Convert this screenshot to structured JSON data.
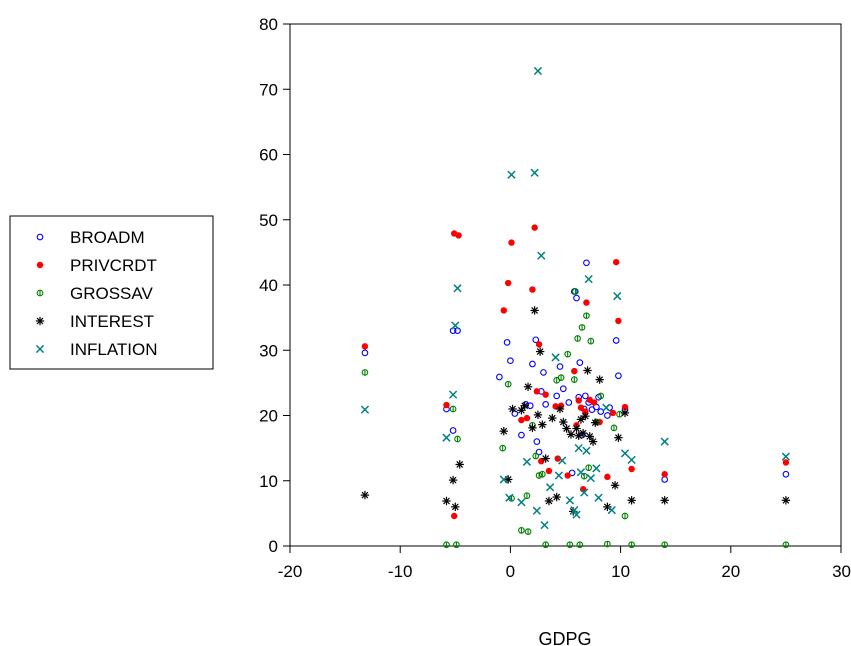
{
  "chart_data": {
    "type": "scatter",
    "xlabel": "GDPG",
    "ylabel": "",
    "xlim": [
      -20,
      30
    ],
    "ylim": [
      0,
      80
    ],
    "xticks": [
      -20,
      -10,
      0,
      10,
      20,
      30
    ],
    "yticks": [
      0,
      10,
      20,
      30,
      40,
      50,
      60,
      70,
      80
    ],
    "grid": false,
    "legend_position": "left",
    "series": [
      {
        "name": "BROADM",
        "marker": "circle-open",
        "color": "#0000ff",
        "points": [
          [
            -13.2,
            29.6
          ],
          [
            -5.8,
            21.0
          ],
          [
            -5.2,
            33.0
          ],
          [
            -4.8,
            33.0
          ],
          [
            -5.2,
            17.7
          ],
          [
            -1.0,
            25.9
          ],
          [
            -0.3,
            31.2
          ],
          [
            0.0,
            28.4
          ],
          [
            0.4,
            20.3
          ],
          [
            1.0,
            17.0
          ],
          [
            1.4,
            21.7
          ],
          [
            1.8,
            21.5
          ],
          [
            2.0,
            27.9
          ],
          [
            2.3,
            31.6
          ],
          [
            2.4,
            16.0
          ],
          [
            2.6,
            14.4
          ],
          [
            2.8,
            23.7
          ],
          [
            3.0,
            26.6
          ],
          [
            3.2,
            21.7
          ],
          [
            4.2,
            23.0
          ],
          [
            4.5,
            27.5
          ],
          [
            4.8,
            24.1
          ],
          [
            5.3,
            22.0
          ],
          [
            5.6,
            11.2
          ],
          [
            5.8,
            39.0
          ],
          [
            6.0,
            38.0
          ],
          [
            6.2,
            22.8
          ],
          [
            6.3,
            28.1
          ],
          [
            6.5,
            17.0
          ],
          [
            6.7,
            21.0
          ],
          [
            6.8,
            23.0
          ],
          [
            6.9,
            43.4
          ],
          [
            7.1,
            22.0
          ],
          [
            7.4,
            20.9
          ],
          [
            7.8,
            21.3
          ],
          [
            8.0,
            22.8
          ],
          [
            8.2,
            20.6
          ],
          [
            8.8,
            20.0
          ],
          [
            9.0,
            21.2
          ],
          [
            9.6,
            31.5
          ],
          [
            9.8,
            26.1
          ],
          [
            10.4,
            20.9
          ],
          [
            14.0,
            10.2
          ],
          [
            25.0,
            11.0
          ]
        ]
      },
      {
        "name": "PRIVCRDT",
        "marker": "dot",
        "color": "#ff0000",
        "points": [
          [
            -13.2,
            30.6
          ],
          [
            -5.8,
            21.6
          ],
          [
            -5.1,
            47.9
          ],
          [
            -4.7,
            47.6
          ],
          [
            -5.1,
            4.6
          ],
          [
            -0.6,
            36.1
          ],
          [
            -0.2,
            40.3
          ],
          [
            0.1,
            46.5
          ],
          [
            1.0,
            19.3
          ],
          [
            1.5,
            19.6
          ],
          [
            2.0,
            39.3
          ],
          [
            2.2,
            48.8
          ],
          [
            2.4,
            23.7
          ],
          [
            2.6,
            30.9
          ],
          [
            2.8,
            13.0
          ],
          [
            3.2,
            23.2
          ],
          [
            3.5,
            11.5
          ],
          [
            4.1,
            21.4
          ],
          [
            4.3,
            13.4
          ],
          [
            4.6,
            21.5
          ],
          [
            5.2,
            10.8
          ],
          [
            5.8,
            26.8
          ],
          [
            6.0,
            18.5
          ],
          [
            6.2,
            22.3
          ],
          [
            6.4,
            21.2
          ],
          [
            6.6,
            8.7
          ],
          [
            6.8,
            20.6
          ],
          [
            6.9,
            37.3
          ],
          [
            7.2,
            22.4
          ],
          [
            7.6,
            22.0
          ],
          [
            8.1,
            19.0
          ],
          [
            8.8,
            10.6
          ],
          [
            9.3,
            20.4
          ],
          [
            9.6,
            43.5
          ],
          [
            9.8,
            34.5
          ],
          [
            10.4,
            21.3
          ],
          [
            11.0,
            11.8
          ],
          [
            14.0,
            11.0
          ],
          [
            25.0,
            12.8
          ]
        ]
      },
      {
        "name": "GROSSAV",
        "marker": "circle-half",
        "color": "#008000",
        "points": [
          [
            -13.2,
            26.6
          ],
          [
            -5.8,
            0.2
          ],
          [
            -5.2,
            21.0
          ],
          [
            -4.8,
            16.4
          ],
          [
            -4.9,
            0.2
          ],
          [
            -0.7,
            15.0
          ],
          [
            -0.2,
            24.8
          ],
          [
            0.1,
            7.3
          ],
          [
            1.0,
            2.4
          ],
          [
            1.6,
            2.2
          ],
          [
            1.5,
            7.7
          ],
          [
            2.0,
            18.5
          ],
          [
            2.3,
            13.8
          ],
          [
            2.6,
            10.8
          ],
          [
            2.9,
            11.0
          ],
          [
            3.2,
            0.2
          ],
          [
            4.2,
            25.4
          ],
          [
            4.6,
            25.8
          ],
          [
            5.2,
            29.4
          ],
          [
            5.4,
            0.2
          ],
          [
            5.8,
            25.5
          ],
          [
            5.9,
            39.0
          ],
          [
            6.1,
            31.8
          ],
          [
            6.3,
            0.2
          ],
          [
            6.5,
            33.5
          ],
          [
            6.7,
            10.7
          ],
          [
            6.9,
            35.3
          ],
          [
            7.1,
            12.0
          ],
          [
            7.3,
            31.4
          ],
          [
            7.8,
            19.0
          ],
          [
            8.2,
            23.0
          ],
          [
            8.8,
            0.3
          ],
          [
            9.4,
            18.1
          ],
          [
            9.9,
            20.2
          ],
          [
            10.4,
            4.6
          ],
          [
            11.0,
            0.2
          ],
          [
            14.0,
            0.2
          ],
          [
            25.0,
            0.2
          ]
        ]
      },
      {
        "name": "INTEREST",
        "marker": "asterisk",
        "color": "#000000",
        "points": [
          [
            -13.2,
            7.8
          ],
          [
            -5.8,
            6.9
          ],
          [
            -5.2,
            10.1
          ],
          [
            -5.0,
            6.0
          ],
          [
            -4.6,
            12.5
          ],
          [
            -0.6,
            17.6
          ],
          [
            -0.2,
            10.2
          ],
          [
            0.2,
            21.0
          ],
          [
            1.0,
            20.8
          ],
          [
            1.3,
            21.5
          ],
          [
            1.6,
            24.4
          ],
          [
            2.0,
            18.1
          ],
          [
            2.2,
            36.1
          ],
          [
            2.5,
            20.1
          ],
          [
            2.7,
            29.8
          ],
          [
            2.9,
            18.6
          ],
          [
            3.2,
            13.4
          ],
          [
            3.5,
            6.9
          ],
          [
            3.8,
            19.6
          ],
          [
            4.2,
            7.5
          ],
          [
            4.5,
            21.0
          ],
          [
            4.8,
            19.0
          ],
          [
            5.1,
            18.0
          ],
          [
            5.5,
            17.1
          ],
          [
            5.7,
            5.3
          ],
          [
            6.0,
            18.0
          ],
          [
            6.2,
            16.9
          ],
          [
            6.4,
            19.4
          ],
          [
            6.6,
            17.3
          ],
          [
            6.8,
            19.9
          ],
          [
            7.0,
            26.9
          ],
          [
            7.2,
            16.8
          ],
          [
            7.5,
            16.0
          ],
          [
            7.7,
            18.9
          ],
          [
            8.1,
            25.5
          ],
          [
            8.8,
            6.0
          ],
          [
            9.5,
            9.3
          ],
          [
            9.8,
            16.6
          ],
          [
            10.4,
            20.4
          ],
          [
            11.0,
            7.0
          ],
          [
            14.0,
            7.0
          ],
          [
            25.0,
            7.0
          ]
        ]
      },
      {
        "name": "INFLATION",
        "marker": "x",
        "color": "#008080",
        "points": [
          [
            -13.2,
            20.9
          ],
          [
            -5.8,
            16.6
          ],
          [
            -5.2,
            23.2
          ],
          [
            -5.0,
            33.8
          ],
          [
            -4.8,
            39.5
          ],
          [
            -0.6,
            10.2
          ],
          [
            -0.1,
            7.4
          ],
          [
            0.1,
            56.9
          ],
          [
            1.0,
            6.7
          ],
          [
            1.5,
            12.9
          ],
          [
            2.2,
            57.2
          ],
          [
            2.5,
            72.8
          ],
          [
            2.8,
            44.5
          ],
          [
            2.4,
            5.4
          ],
          [
            3.1,
            3.2
          ],
          [
            3.6,
            9.0
          ],
          [
            4.1,
            28.9
          ],
          [
            4.4,
            10.8
          ],
          [
            4.7,
            13.1
          ],
          [
            5.4,
            7.0
          ],
          [
            5.8,
            5.5
          ],
          [
            6.0,
            4.8
          ],
          [
            6.2,
            15.0
          ],
          [
            6.4,
            11.3
          ],
          [
            6.7,
            8.2
          ],
          [
            6.9,
            14.6
          ],
          [
            7.1,
            40.9
          ],
          [
            7.3,
            10.4
          ],
          [
            7.8,
            11.9
          ],
          [
            8.0,
            7.4
          ],
          [
            8.7,
            21.2
          ],
          [
            9.2,
            5.5
          ],
          [
            9.7,
            38.3
          ],
          [
            10.4,
            14.2
          ],
          [
            11.0,
            13.2
          ],
          [
            14.0,
            16.0
          ],
          [
            25.0,
            13.7
          ]
        ]
      }
    ]
  }
}
